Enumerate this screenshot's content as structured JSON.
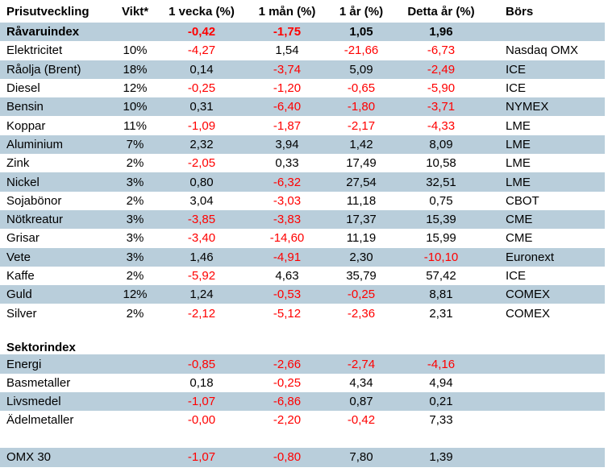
{
  "colors": {
    "stripe": "#b9cedb",
    "negative_value": "#ff0000",
    "text": "#000000",
    "background": "#ffffff"
  },
  "table": {
    "columns": [
      {
        "key": "name",
        "label": "Prisutveckling"
      },
      {
        "key": "weight",
        "label": "Vikt*"
      },
      {
        "key": "week",
        "label": "1 vecka (%)"
      },
      {
        "key": "month",
        "label": "1 mån (%)"
      },
      {
        "key": "year",
        "label": "1 år (%)"
      },
      {
        "key": "ytd",
        "label": "Detta år (%)"
      },
      {
        "key": "exchange",
        "label": "Börs"
      }
    ],
    "rows": [
      {
        "type": "data",
        "bold": true,
        "stripe": true,
        "name": "Råvaruindex",
        "weight": "",
        "week": "-0,42",
        "month": "-1,75",
        "year": "1,05",
        "ytd": "1,96",
        "exchange": ""
      },
      {
        "type": "data",
        "bold": false,
        "stripe": false,
        "name": "Elektricitet",
        "weight": "10%",
        "week": "-4,27",
        "month": "1,54",
        "year": "-21,66",
        "ytd": "-6,73",
        "exchange": "Nasdaq OMX"
      },
      {
        "type": "data",
        "bold": false,
        "stripe": true,
        "name": "Råolja (Brent)",
        "weight": "18%",
        "week": "0,14",
        "month": "-3,74",
        "year": "5,09",
        "ytd": "-2,49",
        "exchange": "ICE"
      },
      {
        "type": "data",
        "bold": false,
        "stripe": false,
        "name": "Diesel",
        "weight": "12%",
        "week": "-0,25",
        "month": "-1,20",
        "year": "-0,65",
        "ytd": "-5,90",
        "exchange": "ICE"
      },
      {
        "type": "data",
        "bold": false,
        "stripe": true,
        "name": "Bensin",
        "weight": "10%",
        "week": "0,31",
        "month": "-6,40",
        "year": "-1,80",
        "ytd": "-3,71",
        "exchange": "NYMEX"
      },
      {
        "type": "data",
        "bold": false,
        "stripe": false,
        "name": "Koppar",
        "weight": "11%",
        "week": "-1,09",
        "month": "-1,87",
        "year": "-2,17",
        "ytd": "-4,33",
        "exchange": "LME"
      },
      {
        "type": "data",
        "bold": false,
        "stripe": true,
        "name": "Aluminium",
        "weight": "7%",
        "week": "2,32",
        "month": "3,94",
        "year": "1,42",
        "ytd": "8,09",
        "exchange": "LME"
      },
      {
        "type": "data",
        "bold": false,
        "stripe": false,
        "name": "Zink",
        "weight": "2%",
        "week": "-2,05",
        "month": "0,33",
        "year": "17,49",
        "ytd": "10,58",
        "exchange": "LME"
      },
      {
        "type": "data",
        "bold": false,
        "stripe": true,
        "name": "Nickel",
        "weight": "3%",
        "week": "0,80",
        "month": "-6,32",
        "year": "27,54",
        "ytd": "32,51",
        "exchange": "LME"
      },
      {
        "type": "data",
        "bold": false,
        "stripe": false,
        "name": "Sojabönor",
        "weight": "2%",
        "week": "3,04",
        "month": "-3,03",
        "year": "11,18",
        "ytd": "0,75",
        "exchange": "CBOT"
      },
      {
        "type": "data",
        "bold": false,
        "stripe": true,
        "name": "Nötkreatur",
        "weight": "3%",
        "week": "-3,85",
        "month": "-3,83",
        "year": "17,37",
        "ytd": "15,39",
        "exchange": "CME"
      },
      {
        "type": "data",
        "bold": false,
        "stripe": false,
        "name": "Grisar",
        "weight": "3%",
        "week": "-3,40",
        "month": "-14,60",
        "year": "11,19",
        "ytd": "15,99",
        "exchange": "CME"
      },
      {
        "type": "data",
        "bold": false,
        "stripe": true,
        "name": "Vete",
        "weight": "3%",
        "week": "1,46",
        "month": "-4,91",
        "year": "2,30",
        "ytd": "-10,10",
        "exchange": "Euronext"
      },
      {
        "type": "data",
        "bold": false,
        "stripe": false,
        "name": "Kaffe",
        "weight": "2%",
        "week": "-5,92",
        "month": "4,63",
        "year": "35,79",
        "ytd": "57,42",
        "exchange": "ICE"
      },
      {
        "type": "data",
        "bold": false,
        "stripe": true,
        "name": "Guld",
        "weight": "12%",
        "week": "1,24",
        "month": "-0,53",
        "year": "-0,25",
        "ytd": "8,81",
        "exchange": "COMEX"
      },
      {
        "type": "data",
        "bold": false,
        "stripe": false,
        "name": "Silver",
        "weight": "2%",
        "week": "-2,12",
        "month": "-5,12",
        "year": "-2,36",
        "ytd": "2,31",
        "exchange": "COMEX"
      },
      {
        "type": "blank"
      },
      {
        "type": "section",
        "name": "Sektorindex"
      },
      {
        "type": "data",
        "bold": false,
        "stripe": true,
        "name": "Energi",
        "weight": "",
        "week": "-0,85",
        "month": "-2,66",
        "year": "-2,74",
        "ytd": "-4,16",
        "exchange": ""
      },
      {
        "type": "data",
        "bold": false,
        "stripe": false,
        "name": "Basmetaller",
        "weight": "",
        "week": "0,18",
        "month": "-0,25",
        "year": "4,34",
        "ytd": "4,94",
        "exchange": ""
      },
      {
        "type": "data",
        "bold": false,
        "stripe": true,
        "name": "Livsmedel",
        "weight": "",
        "week": "-1,07",
        "month": "-6,86",
        "year": "0,87",
        "ytd": "0,21",
        "exchange": ""
      },
      {
        "type": "data",
        "bold": false,
        "stripe": false,
        "name": "Ädelmetaller",
        "weight": "",
        "week": "-0,00",
        "month": "-2,20",
        "year": "-0,42",
        "ytd": "7,33",
        "exchange": ""
      },
      {
        "type": "blank"
      },
      {
        "type": "data",
        "bold": false,
        "stripe": true,
        "name": "OMX 30",
        "weight": "",
        "week": "-1,07",
        "month": "-0,80",
        "year": "7,80",
        "ytd": "1,39",
        "exchange": ""
      }
    ]
  }
}
